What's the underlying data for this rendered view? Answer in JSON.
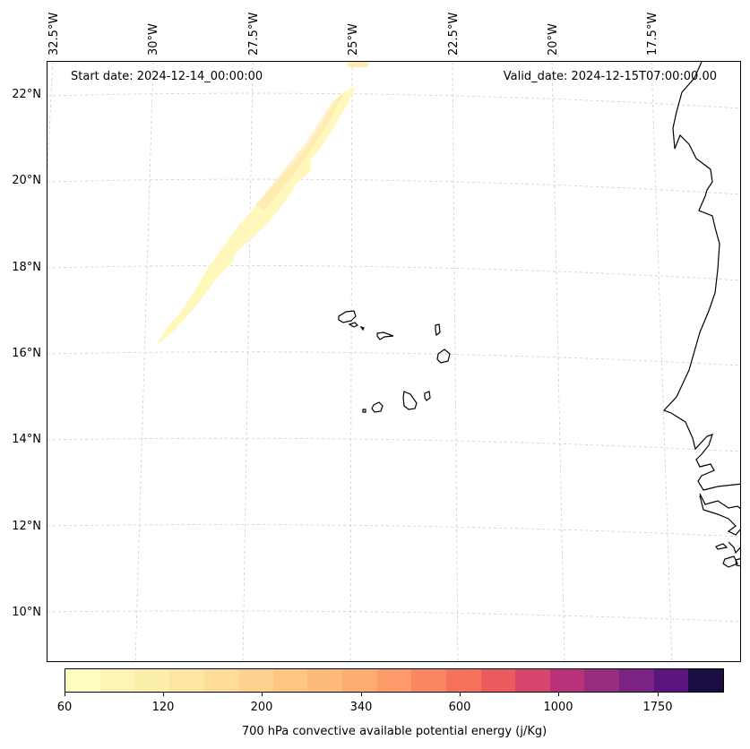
{
  "map": {
    "start_date": "Start date: 2024-12-14_00:00:00",
    "valid_date": "Valid_date: 2024-12-15T07:00:00.00",
    "lon_labels": [
      "32.5°W",
      "30°W",
      "27.5°W",
      "25°W",
      "22.5°W",
      "20°W",
      "17.5°W"
    ],
    "lat_labels": [
      "22°N",
      "20°N",
      "18°N",
      "16°N",
      "14°N",
      "12°N",
      "10°N"
    ],
    "features": [
      "Cape Verde islands",
      "West African coastline"
    ],
    "field_color": "#fff7b8"
  },
  "colorbar": {
    "title": "700 hPa convective available potential energy (j/Kg)",
    "tick_labels": [
      "60",
      "120",
      "200",
      "340",
      "600",
      "1000",
      "1750"
    ],
    "colors": [
      "#fffdbf",
      "#fdf4b5",
      "#fcefab",
      "#fde6a2",
      "#fddd98",
      "#fdd28e",
      "#fdc684",
      "#fdba7b",
      "#fdac72",
      "#fd9a69",
      "#fb8761",
      "#f6725c",
      "#ec5c5f",
      "#d6456b",
      "#b83279",
      "#982d80",
      "#7b2382",
      "#5a167e",
      "#1b0c41"
    ]
  }
}
